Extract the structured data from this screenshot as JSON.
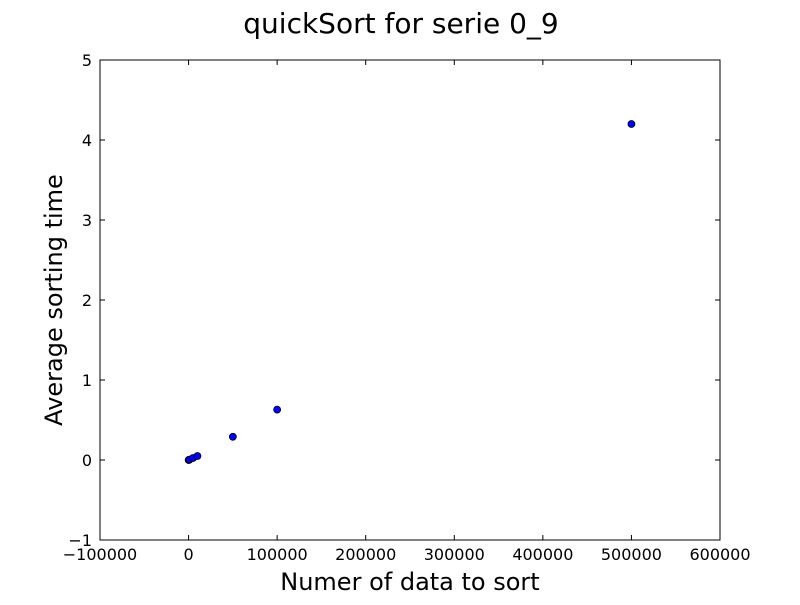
{
  "chart_data": {
    "type": "scatter",
    "title": "quickSort for serie 0_9",
    "xlabel": "Numer of data to sort",
    "ylabel": "Average sorting time",
    "xlim": [
      -100000,
      600000
    ],
    "ylim": [
      -1,
      5
    ],
    "xticks": [
      -100000,
      0,
      100000,
      200000,
      300000,
      400000,
      500000,
      600000
    ],
    "xtick_labels": [
      "−100000",
      "0",
      "100000",
      "200000",
      "300000",
      "400000",
      "500000",
      "600000"
    ],
    "yticks": [
      -1,
      0,
      1,
      2,
      3,
      4,
      5
    ],
    "ytick_labels": [
      "−1",
      "0",
      "1",
      "2",
      "3",
      "4",
      "5"
    ],
    "grid": false,
    "marker_color": "#0000ff",
    "marker_edge_color": "#000000",
    "series": [
      {
        "points": [
          {
            "x": 100,
            "y": 0.0
          },
          {
            "x": 500,
            "y": 0.002
          },
          {
            "x": 1000,
            "y": 0.005
          },
          {
            "x": 5000,
            "y": 0.025
          },
          {
            "x": 10000,
            "y": 0.05
          },
          {
            "x": 50000,
            "y": 0.29
          },
          {
            "x": 100000,
            "y": 0.63
          },
          {
            "x": 500000,
            "y": 4.2
          }
        ]
      }
    ]
  }
}
